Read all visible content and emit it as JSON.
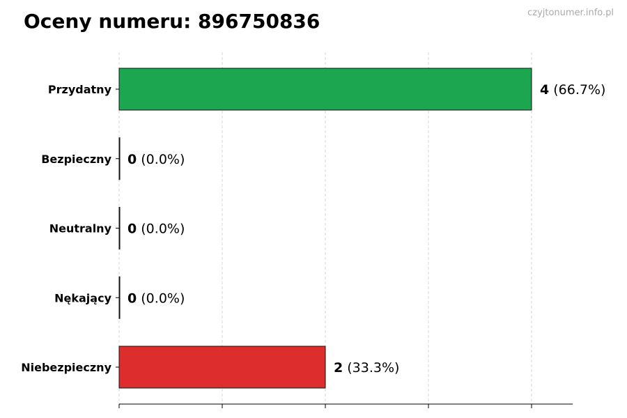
{
  "title": "Oceny numeru: 896750836",
  "watermark": "czyjtonumer.info.pl",
  "chart_data": {
    "type": "bar",
    "orientation": "horizontal",
    "title": "Oceny numeru: 896750836",
    "categories": [
      "Przydatny",
      "Bezpieczny",
      "Neutralny",
      "Nękający",
      "Niebezpieczny"
    ],
    "values": [
      4,
      0,
      0,
      0,
      2
    ],
    "percent_labels": [
      "(66.7%)",
      "(0.0%)",
      "(0.0%)",
      "(0.0%)",
      "(33.3%)"
    ],
    "colors": [
      "#16a34a",
      "#16a34a",
      "#9ca3af",
      "#dc2626",
      "#dc2626"
    ],
    "xlim": [
      0,
      4.4
    ],
    "xticks": [
      0,
      1,
      2,
      3,
      4
    ],
    "xtick_labels_shown": false,
    "grid": "x-dashed",
    "xlabel": "",
    "ylabel": ""
  }
}
